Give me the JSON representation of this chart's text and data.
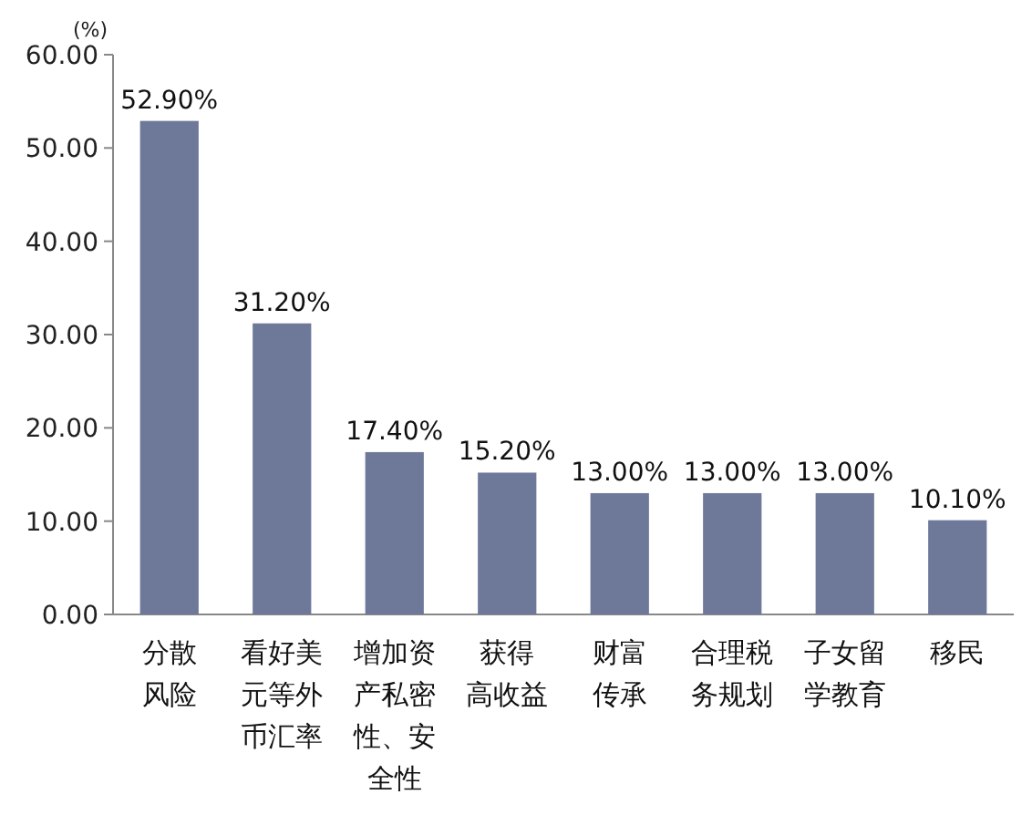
{
  "chart_data": {
    "type": "bar",
    "ylabel": "(%)",
    "categories": [
      "分散风险",
      "看好美元等外币汇率",
      "增加资产私密性、安全性",
      "获得高收益",
      "财富传承",
      "合理税务规划",
      "子女留学教育",
      "移民"
    ],
    "values": [
      52.9,
      31.2,
      17.4,
      15.2,
      13.0,
      13.0,
      13.0,
      10.1
    ],
    "value_labels": [
      "52.90%",
      "31.20%",
      "17.40%",
      "15.20%",
      "13.00%",
      "13.00%",
      "13.00%",
      "10.10%"
    ],
    "color": "#6e7899",
    "ylim": [
      0,
      60
    ],
    "yticks": [
      {
        "value": 0,
        "label": "0.00"
      },
      {
        "value": 10,
        "label": "10.00"
      },
      {
        "value": 20,
        "label": "20.00"
      },
      {
        "value": 30,
        "label": "30.00"
      },
      {
        "value": 40,
        "label": "40.00"
      },
      {
        "value": 50,
        "label": "50.00"
      },
      {
        "value": 60,
        "label": "60.00"
      }
    ],
    "grid": false
  }
}
